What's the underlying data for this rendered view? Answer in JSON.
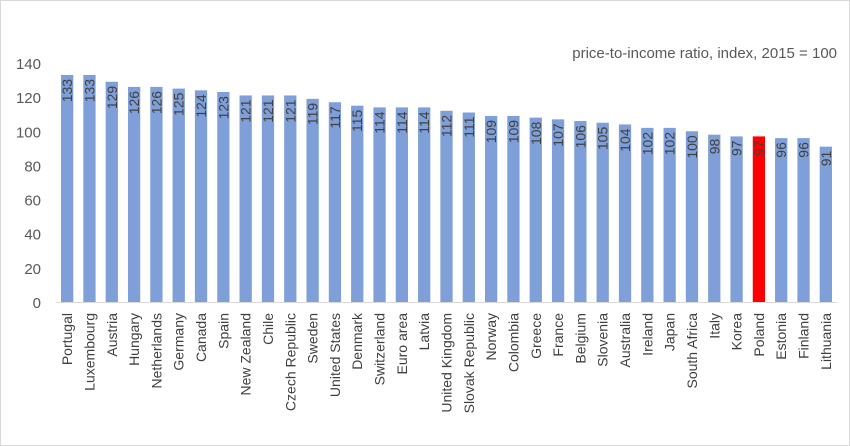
{
  "chart_data": {
    "type": "bar",
    "note": "price-to-income ratio, index, 2015 = 100",
    "categories": [
      "Portugal",
      "Luxembourg",
      "Austria",
      "Hungary",
      "Netherlands",
      "Germany",
      "Canada",
      "Spain",
      "New Zealand",
      "Chile",
      "Czech Republic",
      "Sweden",
      "United States",
      "Denmark",
      "Switzerland",
      "Euro area",
      "Latvia",
      "United Kingdom",
      "Slovak Republic",
      "Norway",
      "Colombia",
      "Greece",
      "France",
      "Belgium",
      "Slovenia",
      "Australia",
      "Ireland",
      "Japan",
      "South Africa",
      "Italy",
      "Korea",
      "Poland",
      "Estonia",
      "Finland",
      "Lithuania"
    ],
    "values": [
      133,
      133,
      129,
      126,
      126,
      125,
      124,
      123,
      121,
      121,
      121,
      119,
      117,
      115,
      114,
      114,
      114,
      112,
      111,
      109,
      109,
      108,
      107,
      106,
      105,
      104,
      102,
      102,
      100,
      98,
      97,
      97,
      96,
      96,
      91
    ],
    "ylim": [
      0,
      140
    ],
    "yticks": [
      0,
      20,
      40,
      60,
      80,
      100,
      120,
      140
    ],
    "highlight": "Poland",
    "colors": {
      "bar": "#7f9fd8",
      "highlight": "#ff0000",
      "label": "#404040",
      "axis": "#595959",
      "grid": "#d9d9d9"
    },
    "grid": false,
    "legend": "none"
  }
}
